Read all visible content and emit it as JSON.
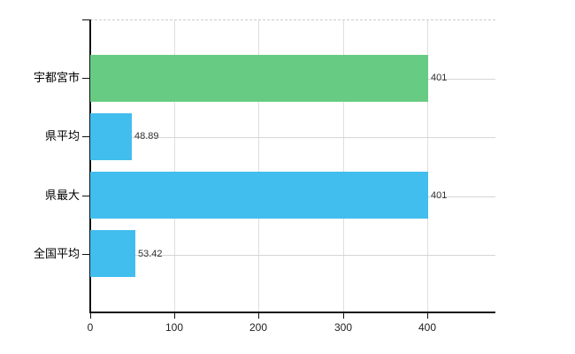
{
  "chart_data": {
    "type": "bar",
    "orientation": "horizontal",
    "title": "",
    "xlabel": "",
    "ylabel": "",
    "categories": [
      "宇都宮市",
      "県平均",
      "県最大",
      "全国平均"
    ],
    "values": [
      401,
      48.89,
      401,
      53.42
    ],
    "value_labels": [
      "401",
      "48.89",
      "401",
      "53.42"
    ],
    "bar_colors": [
      "#68cb83",
      "#41bdee",
      "#41bdee",
      "#41bdee"
    ],
    "x_tick_labels": [
      "0",
      "100",
      "200",
      "300",
      "400"
    ],
    "x_tick_values": [
      0,
      100,
      200,
      300,
      400
    ],
    "xlim": [
      0,
      481
    ],
    "grid": "on",
    "legend": "none",
    "colors": {
      "background": "#ffffff",
      "axis": "#111111",
      "grid_vertical": "#dedede",
      "grid_horizontal": "#d6d6d6",
      "top_border_dashed": "#cccccc",
      "category_label": "#000000",
      "value_label": "#333333",
      "tick_label": "#222222"
    }
  }
}
